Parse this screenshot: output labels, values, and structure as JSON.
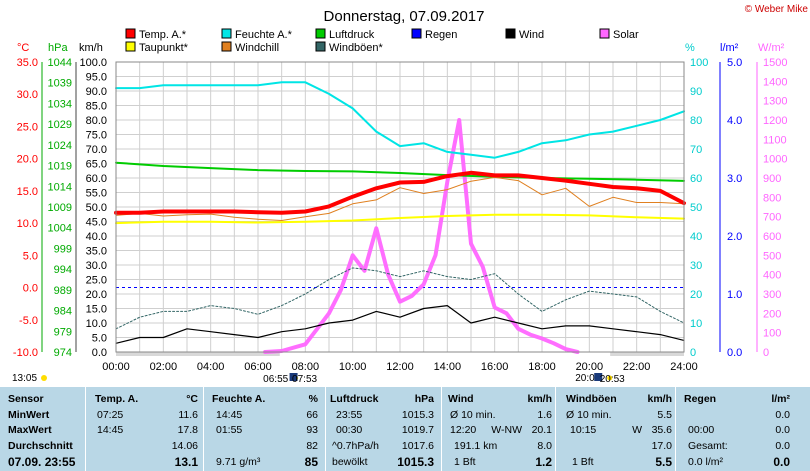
{
  "copyright": "© Weber Mike",
  "chart_data": {
    "type": "line",
    "title": "Donnerstag, 07.09.2017",
    "x_unit": "hours",
    "x_ticks": [
      "00:00",
      "02:00",
      "04:00",
      "06:00",
      "08:00",
      "10:00",
      "12:00",
      "14:00",
      "16:00",
      "18:00",
      "20:00",
      "22:00",
      "24:00"
    ],
    "axes": {
      "temp": {
        "label": "°C",
        "color": "#ff0000",
        "ylim": [
          -10,
          35
        ],
        "ticks": [
          "35.0",
          "30.0",
          "25.0",
          "20.0",
          "15.0",
          "10.0",
          "5.0",
          "0.0",
          "-5.0",
          "-10.0"
        ]
      },
      "pressure": {
        "label": "hPa",
        "color": "#00aa00",
        "ylim": [
          974,
          1044
        ],
        "ticks": [
          "1044",
          "1039",
          "1034",
          "1029",
          "1024",
          "1019",
          "1014",
          "1009",
          "1004",
          "999",
          "994",
          "989",
          "984",
          "979",
          "974"
        ]
      },
      "wind": {
        "label": "km/h",
        "color": "#000000",
        "ylim": [
          0,
          100
        ],
        "ticks": [
          "100.0",
          "95.0",
          "90.0",
          "85.0",
          "80.0",
          "75.0",
          "70.0",
          "65.0",
          "60.0",
          "55.0",
          "50.0",
          "45.0",
          "40.0",
          "35.0",
          "30.0",
          "25.0",
          "20.0",
          "15.0",
          "10.0",
          "5.0",
          "0.0"
        ]
      },
      "humidity": {
        "label": "%",
        "color": "#00cccc",
        "ylim": [
          0,
          100
        ],
        "ticks": [
          "100",
          "90",
          "80",
          "70",
          "60",
          "50",
          "40",
          "30",
          "20",
          "10",
          "0"
        ]
      },
      "rain": {
        "label": "l/m²",
        "color": "#0000ff",
        "ylim": [
          0,
          5
        ],
        "ticks": [
          "5.0",
          "4.0",
          "3.0",
          "2.0",
          "1.0",
          "0.0"
        ]
      },
      "solar": {
        "label": "W/m²",
        "color": "#ff66ff",
        "ylim": [
          0,
          1500
        ],
        "ticks": [
          "1500",
          "1400",
          "1300",
          "1200",
          "1100",
          "1000",
          "900",
          "800",
          "700",
          "600",
          "500",
          "400",
          "300",
          "200",
          "100",
          "0"
        ]
      }
    },
    "legend": [
      {
        "name": "Temp. A.*",
        "color": "#ff0000"
      },
      {
        "name": "Feuchte A.*",
        "color": "#00e5e5"
      },
      {
        "name": "Luftdruck",
        "color": "#00cc00"
      },
      {
        "name": "Regen",
        "color": "#0000ff"
      },
      {
        "name": "Wind",
        "color": "#000000"
      },
      {
        "name": "Solar",
        "color": "#ff66ff"
      },
      {
        "name": "Taupunkt*",
        "color": "#ffff00"
      },
      {
        "name": "Windchill",
        "color": "#e08020"
      },
      {
        "name": "Windböen*",
        "color": "#336666"
      }
    ],
    "series": [
      {
        "name": "Temp. A.*",
        "axis": "temp",
        "color": "#ff0000",
        "x": [
          0,
          1,
          2,
          3,
          4,
          5,
          6,
          7,
          8,
          9,
          10,
          11,
          12,
          13,
          14,
          15,
          16,
          17,
          18,
          19,
          20,
          21,
          22,
          23,
          24
        ],
        "values": [
          11.6,
          11.6,
          11.8,
          11.8,
          11.8,
          11.8,
          11.7,
          11.6,
          11.8,
          12.6,
          14.1,
          15.4,
          16.3,
          16.4,
          17.3,
          17.8,
          17.4,
          17.4,
          17.0,
          16.6,
          16.1,
          15.6,
          15.4,
          15.0,
          13.1
        ]
      },
      {
        "name": "Feuchte A.*",
        "axis": "humidity",
        "color": "#00e5e5",
        "x": [
          0,
          1,
          2,
          3,
          4,
          5,
          6,
          7,
          8,
          9,
          10,
          11,
          12,
          13,
          14,
          15,
          16,
          17,
          18,
          19,
          20,
          21,
          22,
          23,
          24
        ],
        "values": [
          91,
          91,
          92,
          92,
          92,
          92,
          92,
          93,
          93,
          89,
          84,
          76,
          71,
          72,
          69,
          68,
          67,
          69,
          72,
          73,
          75,
          76,
          78,
          80,
          83
        ]
      },
      {
        "name": "Luftdruck",
        "axis": "pressure",
        "color": "#00cc00",
        "x": [
          0,
          2,
          4,
          6,
          8,
          10,
          12,
          14,
          16,
          18,
          20,
          22,
          24
        ],
        "values": [
          1019.7,
          1018.9,
          1018.4,
          1017.9,
          1017.7,
          1017.6,
          1017.2,
          1016.7,
          1016.3,
          1016.0,
          1015.8,
          1015.6,
          1015.3
        ]
      },
      {
        "name": "Taupunkt*",
        "axis": "temp",
        "color": "#ffff00",
        "x": [
          0,
          2,
          4,
          6,
          8,
          10,
          12,
          14,
          16,
          18,
          20,
          22,
          24
        ],
        "values": [
          10.0,
          10.2,
          10.2,
          10.1,
          10.2,
          10.4,
          10.8,
          11.1,
          11.3,
          11.3,
          11.2,
          10.9,
          10.7
        ]
      },
      {
        "name": "Windchill",
        "axis": "temp",
        "color": "#e08020",
        "x": [
          0,
          1,
          2,
          3,
          4,
          5,
          6,
          7,
          8,
          9,
          10,
          11,
          12,
          13,
          14,
          15,
          16,
          17,
          18,
          19,
          20,
          21,
          22,
          23,
          24
        ],
        "values": [
          11.2,
          11.5,
          11.1,
          11.3,
          11.4,
          10.9,
          10.6,
          10.4,
          11.0,
          11.5,
          13.0,
          13.6,
          15.5,
          14.6,
          15.2,
          16.5,
          17.1,
          16.6,
          14.4,
          15.4,
          12.6,
          14.0,
          13.2,
          13.2,
          13.0
        ]
      },
      {
        "name": "Wind",
        "axis": "wind",
        "color": "#000000",
        "x": [
          0,
          1,
          2,
          3,
          4,
          5,
          6,
          7,
          8,
          9,
          10,
          11,
          12,
          13,
          14,
          15,
          16,
          17,
          18,
          19,
          20,
          21,
          22,
          23,
          24
        ],
        "values": [
          3,
          5,
          5,
          8,
          7,
          6,
          5,
          7,
          8,
          10,
          11,
          14,
          12,
          15,
          16,
          10,
          12,
          10,
          8,
          9,
          9,
          8,
          7,
          6,
          4
        ]
      },
      {
        "name": "Windböen*",
        "axis": "wind",
        "color": "#336666",
        "x": [
          0,
          1,
          2,
          3,
          4,
          5,
          6,
          7,
          8,
          9,
          10,
          11,
          12,
          13,
          14,
          15,
          16,
          17,
          18,
          19,
          20,
          21,
          22,
          23,
          24
        ],
        "values": [
          8,
          12,
          14,
          14,
          16,
          15,
          13,
          16,
          20,
          25,
          29,
          28,
          26,
          28,
          26,
          25,
          27,
          20,
          14,
          18,
          21,
          20,
          19,
          14,
          10
        ]
      },
      {
        "name": "Solar",
        "axis": "solar",
        "color": "#ff66ff",
        "x": [
          6.3,
          7,
          8,
          8.5,
          9,
          9.5,
          10,
          10.5,
          11,
          11.5,
          12,
          12.5,
          13,
          13.5,
          14,
          14.5,
          15,
          15.5,
          16,
          16.5,
          17,
          17.5,
          18,
          18.5,
          19,
          19.5
        ],
        "values": [
          0,
          5,
          40,
          120,
          200,
          320,
          500,
          420,
          640,
          400,
          260,
          290,
          350,
          500,
          880,
          1200,
          560,
          440,
          230,
          200,
          120,
          90,
          70,
          45,
          15,
          0
        ]
      }
    ],
    "reference_line": {
      "axis": "temp",
      "value": 0.0,
      "style": "dashed",
      "color": "#0000ff"
    },
    "sun": {
      "rise_civil": "06:55",
      "rise": "07:53",
      "set": "20:01",
      "set_civil": "20:53",
      "current": "13:05"
    }
  },
  "stats": {
    "headers": {
      "sensor": "Sensor",
      "temp": "Temp. A.",
      "temp_unit": "°C",
      "hum": "Feuchte A.",
      "hum_unit": "%",
      "press": "Luftdruck",
      "press_unit": "hPa",
      "wind": "Wind",
      "wind_unit": "km/h",
      "gust": "Windböen",
      "gust_unit": "km/h",
      "rain": "Regen",
      "rain_unit": "l/m²"
    },
    "min": {
      "label": "MinWert",
      "temp_t": "07:25",
      "temp_v": "11.6",
      "hum_t": "14:45",
      "hum_v": "66",
      "press_t": "23:55",
      "press_v": "1015.3",
      "wind_l": "Ø 10 min.",
      "wind_v": "1.6",
      "gust_l": "Ø 10 min.",
      "gust_v": "5.5",
      "rain_v": "0.0"
    },
    "max": {
      "label": "MaxWert",
      "temp_t": "14:45",
      "temp_v": "17.8",
      "hum_t": "01:55",
      "hum_v": "93",
      "press_t": "00:30",
      "press_v": "1019.7",
      "wind_t": "12:20",
      "wind_d": "W-NW",
      "wind_v": "20.1",
      "gust_t": "10:15",
      "gust_d": "W",
      "gust_v": "35.6",
      "rain_t": "00:00",
      "rain_v": "0.0"
    },
    "avg": {
      "label": "Durchschnitt",
      "temp_v": "14.06",
      "hum_v": "82",
      "press_l": "^0.7hPa/h",
      "press_v": "1017.6",
      "wind_l": "191.1 km",
      "wind_v": "8.0",
      "gust_v": "17.0",
      "rain_l": "Gesamt:",
      "rain_v": "0.0"
    },
    "now": {
      "label": "07.09. 23:55",
      "temp_v": "13.1",
      "hum_l": "9.71 g/m³",
      "hum_v": "85",
      "press_l": "bewölkt",
      "press_v": "1015.3",
      "wind_l": "1 Bft",
      "wind_v": "1.2",
      "gust_l": "1 Bft",
      "gust_v": "5.5",
      "rain_l": "0.0 l/m²",
      "rain_v": "0.0"
    }
  }
}
